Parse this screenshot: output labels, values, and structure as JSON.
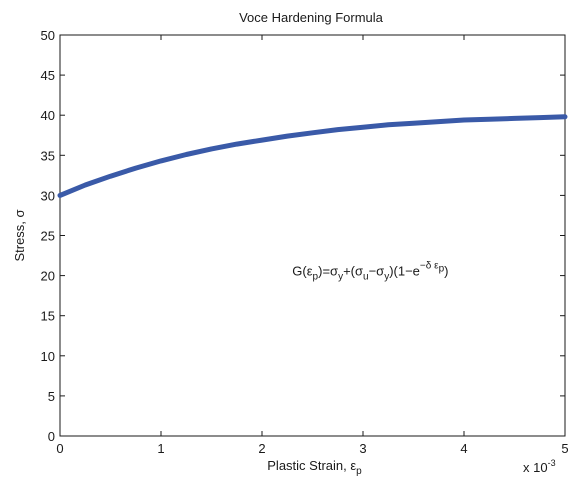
{
  "chart_data": {
    "type": "line",
    "title": "Voce Hardening Formula",
    "xlabel": {
      "base": "Plastic Strain, ε",
      "sub": "p"
    },
    "ylabel": "Stress, σ",
    "xlim": [
      0,
      5
    ],
    "ylim": [
      0,
      50
    ],
    "x_ticks": [
      "0",
      "1",
      "2",
      "3",
      "4",
      "5"
    ],
    "y_ticks": [
      "0",
      "5",
      "10",
      "15",
      "20",
      "25",
      "30",
      "35",
      "40",
      "45",
      "50"
    ],
    "x_multiplier": {
      "base": "x 10",
      "exp": "-3"
    },
    "grid": false,
    "series": [
      {
        "color": "#3a5aa8",
        "x": [
          0,
          0.25,
          0.5,
          0.75,
          1,
          1.25,
          1.5,
          1.75,
          2,
          2.25,
          2.5,
          2.75,
          3,
          3.25,
          3.5,
          3.75,
          4,
          4.25,
          4.5,
          4.75,
          5
        ],
        "y": [
          30,
          31.3,
          32.4,
          33.4,
          34.3,
          35.1,
          35.8,
          36.4,
          36.9,
          37.4,
          37.8,
          38.2,
          38.5,
          38.8,
          39.0,
          39.2,
          39.4,
          39.5,
          39.6,
          39.7,
          39.8
        ]
      }
    ],
    "annotation": {
      "parts": [
        {
          "t": "G(ε",
          "s": "n"
        },
        {
          "t": "p",
          "s": "sub"
        },
        {
          "t": ")=σ",
          "s": "n"
        },
        {
          "t": "y",
          "s": "sub"
        },
        {
          "t": "+(σ",
          "s": "n"
        },
        {
          "t": "u",
          "s": "sub"
        },
        {
          "t": "−σ",
          "s": "n"
        },
        {
          "t": "y",
          "s": "sub"
        },
        {
          "t": ")(1−e",
          "s": "n"
        },
        {
          "t": "−δ ε",
          "s": "sup"
        },
        {
          "t": "p",
          "s": "supsub"
        },
        {
          "t": ")",
          "s": "n"
        }
      ],
      "x": 2.3,
      "y": 20
    }
  }
}
